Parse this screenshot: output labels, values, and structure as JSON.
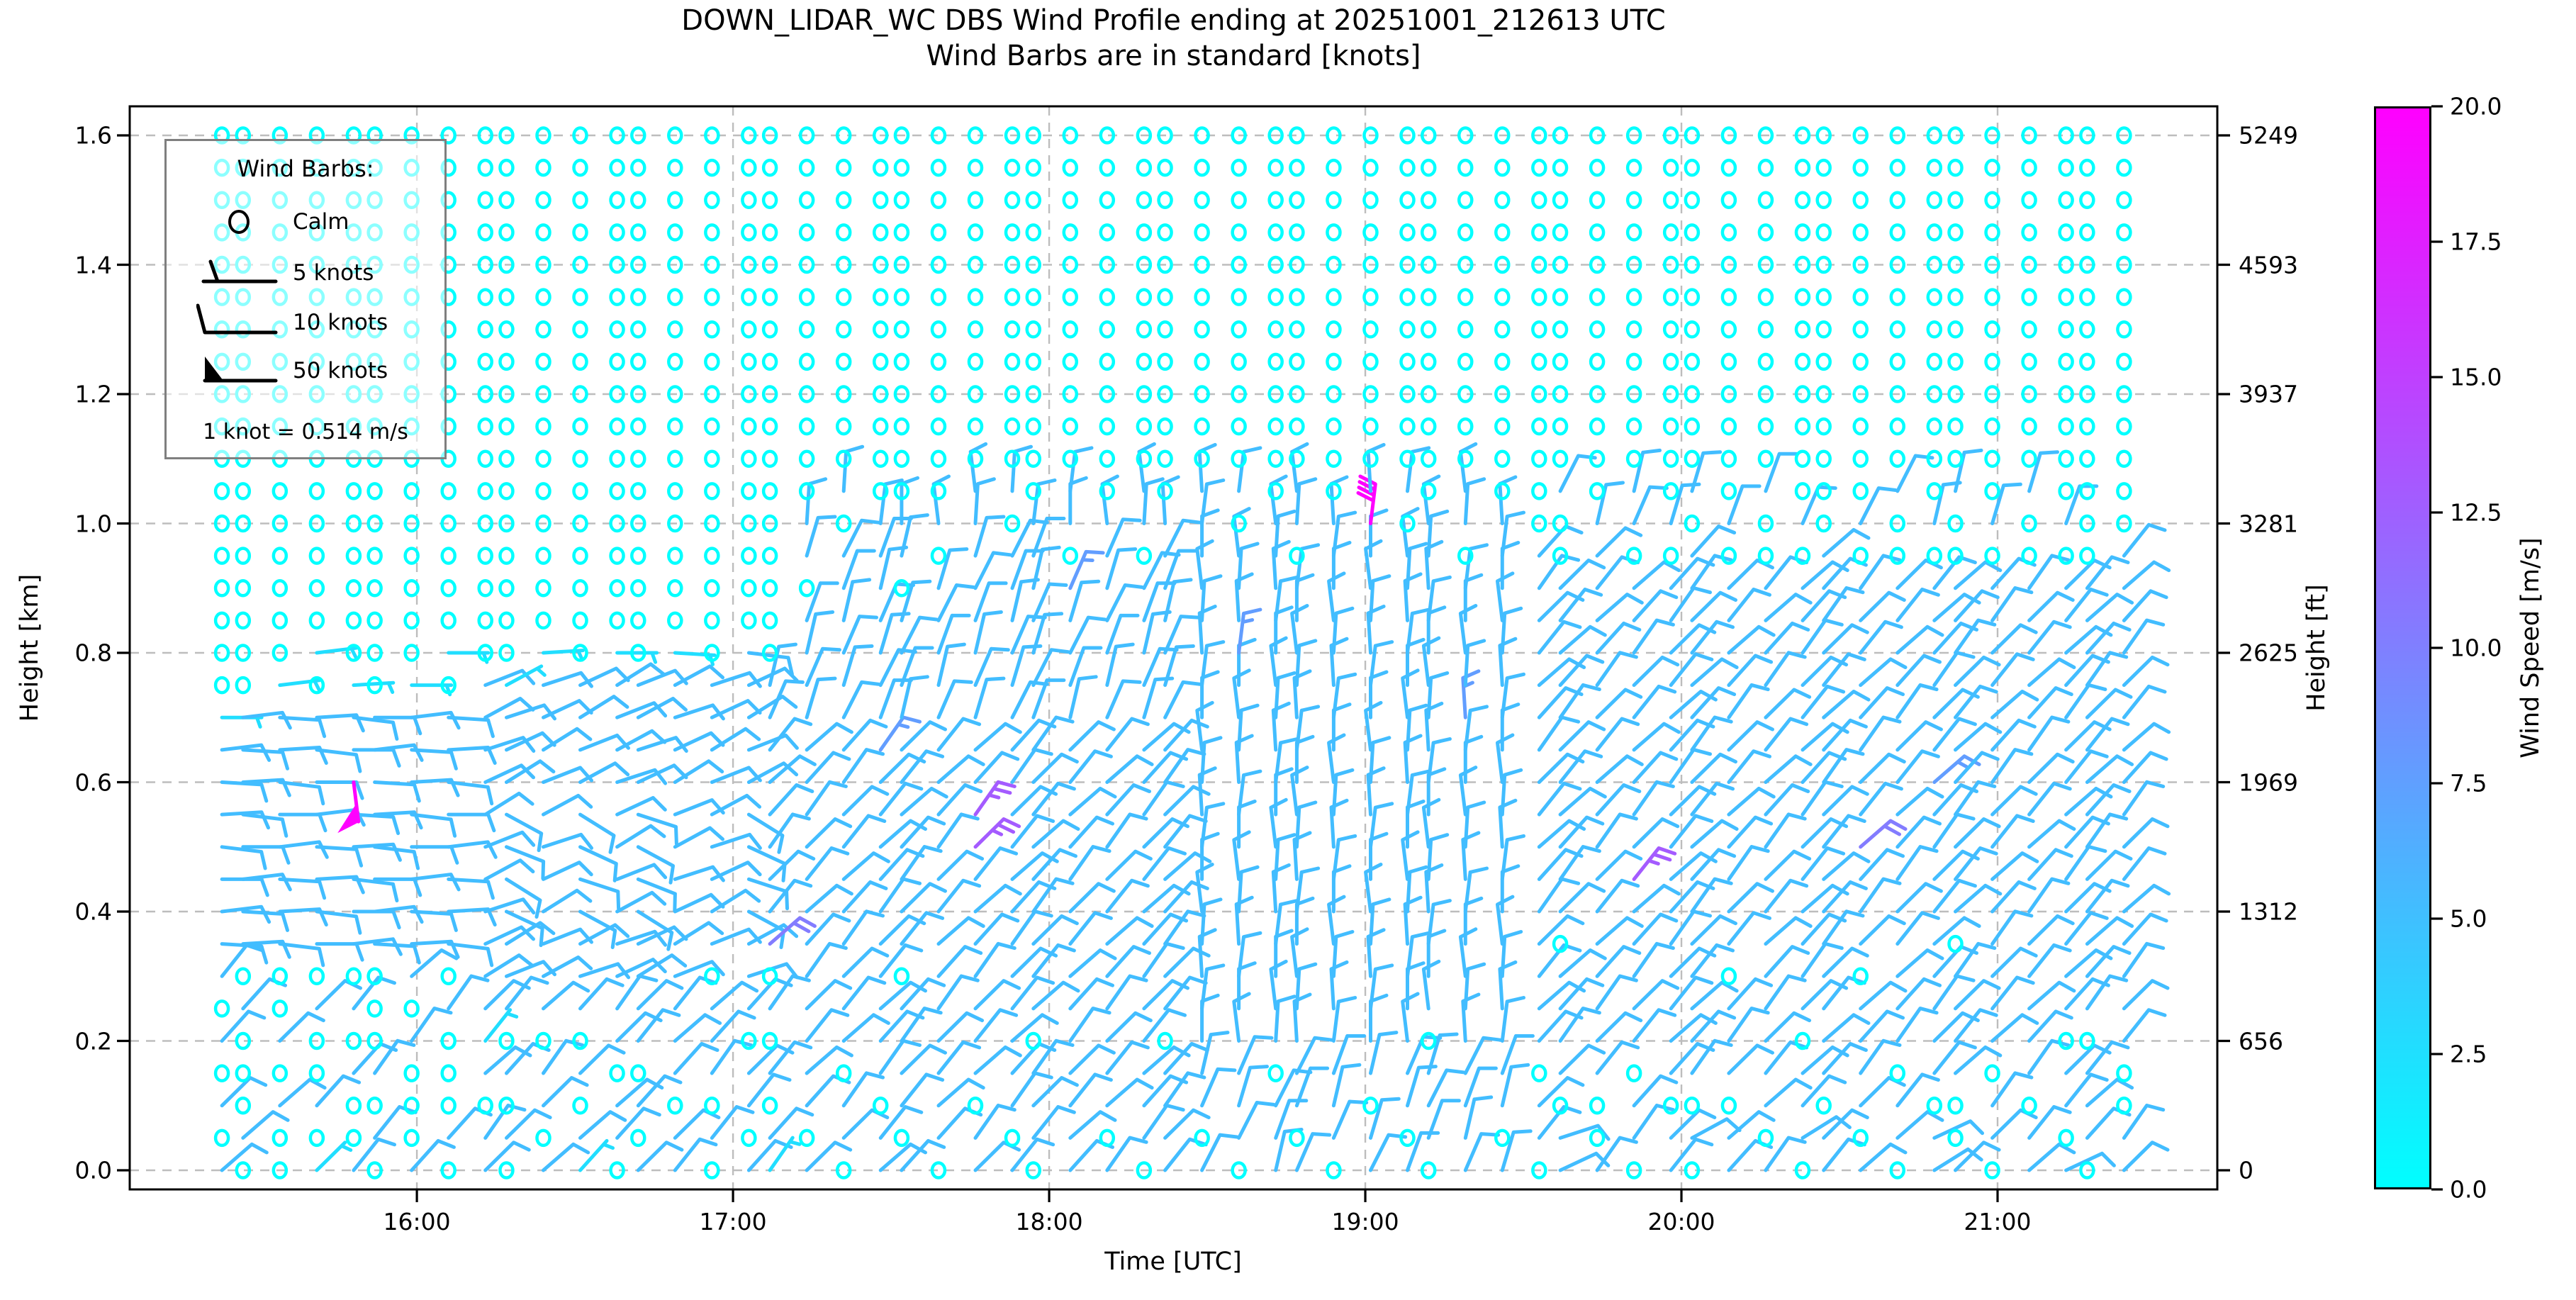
{
  "title": {
    "line1": "DOWN_LIDAR_WC DBS Wind Profile ending at 20251001_212613 UTC",
    "line2": "Wind Barbs are in standard [knots]"
  },
  "axes": {
    "x": {
      "label": "Time [UTC]",
      "ticks": [
        "16:00",
        "17:00",
        "18:00",
        "19:00",
        "20:00",
        "21:00"
      ],
      "tick_minutes_after_15": [
        60,
        120,
        180,
        240,
        300,
        360
      ]
    },
    "y_left": {
      "label": "Height [km]",
      "ticks": [
        "1.6",
        "1.4",
        "1.2",
        "1.0",
        "0.8",
        "0.6",
        "0.4",
        "0.2",
        "0.0"
      ],
      "tick_values_km": [
        1.6,
        1.4,
        1.2,
        1.0,
        0.8,
        0.6,
        0.4,
        0.2,
        0.0
      ]
    },
    "y_right": {
      "label": "Height [ft]",
      "ticks": [
        "5249",
        "4593",
        "3937",
        "3281",
        "2625",
        "1969",
        "1312",
        "656",
        "0"
      ]
    }
  },
  "legend": {
    "title": "Wind Barbs:",
    "items": [
      {
        "glyph": "calm-circle-icon",
        "label": "Calm"
      },
      {
        "glyph": "half-barb-icon",
        "label": "5 knots"
      },
      {
        "glyph": "full-barb-icon",
        "label": "10 knots"
      },
      {
        "glyph": "flag-barb-icon",
        "label": "50 knots"
      }
    ],
    "note": "1 knot = 0.514 m/s"
  },
  "colorbar": {
    "label": "Wind Speed [m/s]",
    "ticks": [
      "20.0",
      "17.5",
      "15.0",
      "12.5",
      "10.0",
      "7.5",
      "5.0",
      "2.5",
      "0.0"
    ],
    "min_ms": 0.0,
    "max_ms": 20.0,
    "color_low": "#00FFFF",
    "color_high": "#FF00FF",
    "colormap": "cool"
  },
  "chart_data": {
    "type": "wind_barb_profile",
    "title": "DOWN_LIDAR_WC DBS Wind Profile ending at 20251001_212613 UTC",
    "xlabel": "Time [UTC]",
    "ylabel": "Height [km]",
    "x_range_utc": [
      "15:06",
      "21:42"
    ],
    "y_range_km": [
      0.0,
      1.6
    ],
    "grid": true,
    "knot_to_ms": 0.514,
    "heights_km": {
      "start_km": 0.0,
      "step_km": 0.05,
      "count": 33,
      "rows_above_string_are_calm": true
    },
    "speed_code_knots": {
      ".": 0,
      "a": 5,
      "b": 10,
      "c": 15,
      "d": 20,
      "e": 25,
      "F": 40,
      "P": 50
    },
    "dir_code_deg": {
      "0": 0,
      "1": 25,
      "2": 48,
      "3": 70,
      "4": 90,
      "5": 115,
      "6": -25,
      "7": -45,
      "9": -90
    },
    "columns": [
      {
        "t": 23,
        "s": "b.b.b.bbbbbbbba.......",
        "d": "2222222000000000000000"
      },
      {
        "t": 27,
        "s": ".b...b.bbbbbbbb.......",
        "d": "2222222000000000000000"
      },
      {
        "t": 34,
        "s": "..b.b..bbbbbbbba......",
        "d": "2222222000000000000000"
      },
      {
        "t": 41,
        "s": "a.b..b.bbbbbbbb.a.....",
        "d": "2222222000000000000000"
      },
      {
        "t": 48,
        "s": "b..b.b.bbbbbPbba......",
        "d": "2222222000009000000000"
      },
      {
        "t": 52,
        "s": ".b.b...bbbbbbbb.......",
        "d": "2222222000000000000000"
      },
      {
        "t": 59,
        "s": "b...b.bbbbbbbbba......",
        "d": "2222222000000000000000"
      },
      {
        "t": 66,
        "s": ".b...b.bbbbbbbb.a.....",
        "d": "2222222000000000000000"
      },
      {
        "t": 73,
        "s": "bb.babbbbbbbbbbb......",
        "d": "2222221111111111000000"
      },
      {
        "t": 77,
        "s": ".b.b.bbbbbbbbbba......",
        "d": "2222221166661111000000"
      },
      {
        "t": 84,
        "s": "b.bb.bbbbbbbbbbba.....",
        "d": "2222221111111111000000"
      },
      {
        "t": 91,
        "s": "ab.b.bbbbbbbbbbb......",
        "d": "2222221166661111000000"
      },
      {
        "t": 98,
        "s": ".bb.bbbbbbbbbbbba.....",
        "d": "2222221111111111000000"
      },
      {
        "t": 102,
        "s": "b.b.bbbbbbbbbbbb......",
        "d": "2222221166661111000000"
      },
      {
        "t": 109,
        "s": "bb.bbbbbbbbbbbbba.....",
        "d": "2222221111111111000000"
      },
      {
        "t": 116,
        "s": ".b.bbb.bbbbbbbbb......",
        "d": "2222221111111111000000"
      },
      {
        "t": 123,
        "s": "b.bb.bbbbbbbbbbbb.....",
        "d": "2222221166661111000000"
      },
      {
        "t": 127,
        "s": "ab.b.b.dbbbbbbbb......",
        "d": "2222222222222233333344"
      },
      {
        "t": 134,
        "s": "b.bbbbbbbbbbbbbbbb.bb.",
        "d": "2222222222222233333344"
      },
      {
        "t": 141,
        "s": ".bb.bbbbbbbbbbbbbbbb.b",
        "d": "2222222222222233333344"
      },
      {
        "t": 148,
        "s": "bb.bbbbbbbbbbcbbbbbbb.",
        "d": "2222222222222233333344"
      },
      {
        "t": 152,
        "s": "b.bbbb.bbbbbbbbbbb.bb.",
        "d": "2222222222222233333344"
      },
      {
        "t": 159,
        "s": ".bbbbbbbbbbbbbbbbbb.b.",
        "d": "2222222222222233333344"
      },
      {
        "t": 166,
        "s": "bb.bbbbbbbeebbbbbbbbbb",
        "d": "2222222222222233333344"
      },
      {
        "t": 173,
        "s": "b.bbbbbbbbbbbbbbbbbb.b",
        "d": "2222222222222233333344"
      },
      {
        "t": 177,
        "s": ".bbb.bbbbbbbbbbbbbbbb.",
        "d": "2222222222222233333344"
      },
      {
        "t": 184,
        "s": "bbbbbbbbbbbbbbbbbbc.bb",
        "d": "2222222222222233333344"
      },
      {
        "t": 191,
        "s": "b.bbbbbbbbbbbbbbbbbbb.",
        "d": "2222222222222233333344"
      },
      {
        "t": 198,
        "s": ".bbbbbbbbbbbbbbbbbb.bb",
        "d": "2222222222222233333344"
      },
      {
        "t": 202,
        "s": "bbbb.bbbbbbbbbbbbbbbb.",
        "d": "2222222222222233333344"
      },
      {
        "t": 209,
        "s": "b.bbbbbbbbbbbbbbbbbbbb",
        "d": "3333444444444444444444"
      },
      {
        "t": 216,
        "s": ".bbbbbbbbbbbbbbbcbbb.b",
        "d": "3333444444444444444444"
      },
      {
        "t": 223,
        "s": "bbb.bbbbbbbbbbbbbbbbb.",
        "d": "3333444444444444444444"
      },
      {
        "t": 227,
        "s": "b.bbbbbbbbbbbbbbbbb.bb",
        "d": "3333444444444444444444"
      },
      {
        "t": 234,
        "s": ".bbbbbbbbbbbbbbbbbbbb.",
        "d": "3333444444444444444444"
      },
      {
        "t": 241,
        "s": "bb.bbbbbbbbbbbbbbbbbFb",
        "d": "3333444444444444444444"
      },
      {
        "t": 248,
        "s": "b.bbbbbbbbbbbbbbbbbb.b",
        "d": "3333444444444444444444"
      },
      {
        "t": 252,
        "s": ".bbb.bbbbbbbbbbbbbbbb.",
        "d": "3333444444444444444444"
      },
      {
        "t": 259,
        "s": "bbbbbbbbbbbbbbcbbbb.bb",
        "d": "3333444444444444444444"
      },
      {
        "t": 266,
        "s": "b.bbbbbbbbbbbbbbbbbbb.",
        "d": "3333444444444444444444"
      },
      {
        "t": 273,
        "s": ".bb.bbbbbbbbbbbbbbbb..",
        "d": "2222222222222222222233"
      },
      {
        "t": 277,
        "s": "bb.bbbb.bbbbbbbbbbb..b",
        "d": "1122222222222222222233"
      },
      {
        "t": 284,
        "s": "b..bbbbbbbbbbbbbbbbbb.",
        "d": "2222222222222222222233"
      },
      {
        "t": 291,
        "s": ".bb.bbbbbebbbbbbbbb.bb",
        "d": "2222222222222222222233"
      },
      {
        "t": 298,
        "s": "bb.bbbbbbbbbbbbbbbb.b.",
        "d": "2222222222222222222233"
      },
      {
        "t": 302,
        "s": ".b.bbbbbbbbbbbbbbbbb.b",
        "d": "1122222222222222222233"
      },
      {
        "t": 309,
        "s": "bb.bbb.bbbbbbbbbbbb.b.",
        "d": "2222222222222222222233"
      },
      {
        "t": 316,
        "s": "b.bbbbbbbbbbbbbbbbb..b",
        "d": "2222222222222222222233"
      },
      {
        "t": 323,
        "s": ".bbb.bbbbbbbbbbbbbb.b.",
        "d": "1122222222222222222233"
      },
      {
        "t": 327,
        "s": "bb.bbbbbbbbbbbbbbbbb..",
        "d": "2222222222222222222233"
      },
      {
        "t": 334,
        "s": "b.bbbb.bbbdbbbbbbbb.b.",
        "d": "2222222222222222222233"
      },
      {
        "t": 341,
        "s": ".bb.bbbbbbbbbbbbbbb..b",
        "d": "2222222222222222222233"
      },
      {
        "t": 348,
        "s": "bb.bbbbbbbbbcbbbbbb.b.",
        "d": "1122222222222222222233"
      },
      {
        "t": 352,
        "s": "b..bbbb.bbbbbbbbbbb..b",
        "d": "2222222222222222222233"
      },
      {
        "t": 359,
        "s": ".bb.bbbbbbbbbbbbbbb.b.",
        "d": "2222222222222222222233"
      },
      {
        "t": 366,
        "s": "bb.bbbbbbbbbbbbbbbb..b",
        "d": "2222222222222222222233"
      },
      {
        "t": 373,
        "s": "b.bb.bbbbbbbbbbbbbb.b.",
        "d": "1122222222222222222233"
      },
      {
        "t": 377,
        "s": ".bbb.bbbbbbbbbbbbbb...",
        "d": "2222222222222222222233"
      },
      {
        "t": 384,
        "s": "bb..bbbbbbbbbbbbbbbb..",
        "d": "2222222222222222222233"
      }
    ]
  }
}
